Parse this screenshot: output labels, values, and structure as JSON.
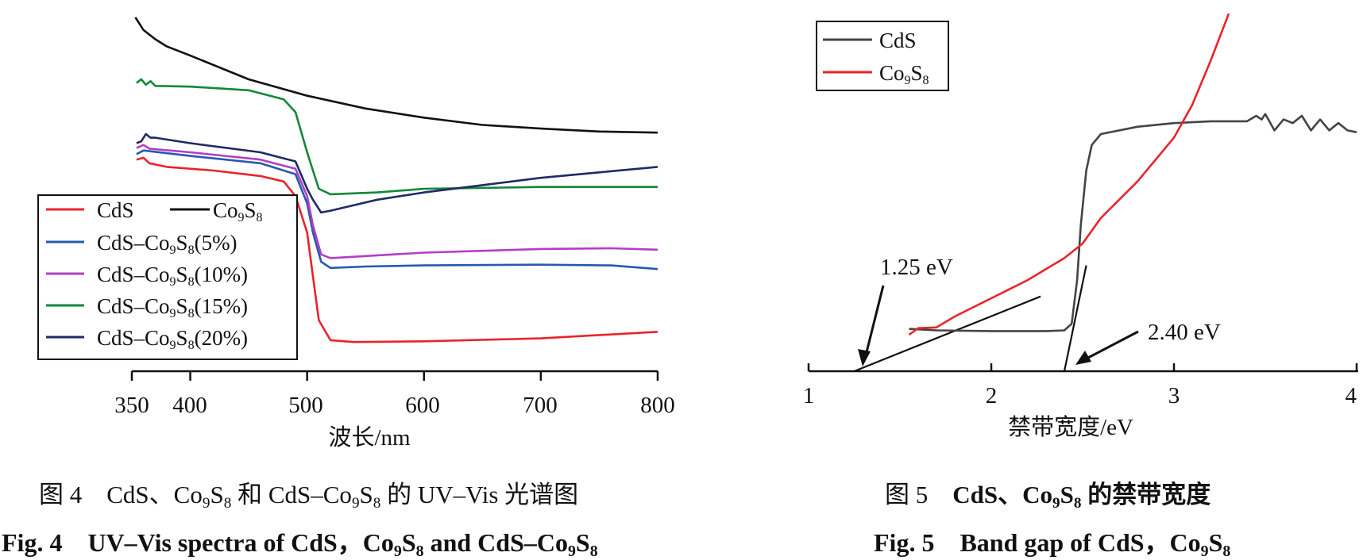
{
  "chart_data": [
    {
      "type": "line",
      "xlabel": "波长/nm",
      "ylabel": "",
      "xlim": [
        350,
        800
      ],
      "x_ticks": [
        350,
        400,
        500,
        600,
        700,
        800
      ],
      "grid": false,
      "legend_position": "bottom-left",
      "series": [
        {
          "name": "CdS",
          "color": "#e8242a",
          "points": [
            [
              354,
              0.58
            ],
            [
              360,
              0.585
            ],
            [
              365,
              0.57
            ],
            [
              380,
              0.56
            ],
            [
              420,
              0.55
            ],
            [
              460,
              0.535
            ],
            [
              480,
              0.52
            ],
            [
              490,
              0.48
            ],
            [
              500,
              0.38
            ],
            [
              505,
              0.26
            ],
            [
              510,
              0.14
            ],
            [
              520,
              0.085
            ],
            [
              540,
              0.08
            ],
            [
              600,
              0.082
            ],
            [
              700,
              0.09
            ],
            [
              800,
              0.108
            ]
          ]
        },
        {
          "name": "Co9S8",
          "color": "#111111",
          "points": [
            [
              353,
              0.97
            ],
            [
              360,
              0.935
            ],
            [
              370,
              0.91
            ],
            [
              380,
              0.89
            ],
            [
              400,
              0.865
            ],
            [
              450,
              0.8
            ],
            [
              500,
              0.755
            ],
            [
              550,
              0.72
            ],
            [
              600,
              0.695
            ],
            [
              650,
              0.675
            ],
            [
              700,
              0.665
            ],
            [
              750,
              0.657
            ],
            [
              800,
              0.654
            ]
          ]
        },
        {
          "name": "CdS–Co9S8(5%)",
          "color": "#2659b0",
          "points": [
            [
              354,
              0.595
            ],
            [
              360,
              0.605
            ],
            [
              365,
              0.603
            ],
            [
              400,
              0.59
            ],
            [
              460,
              0.57
            ],
            [
              490,
              0.54
            ],
            [
              500,
              0.46
            ],
            [
              505,
              0.38
            ],
            [
              512,
              0.3
            ],
            [
              520,
              0.283
            ],
            [
              550,
              0.287
            ],
            [
              600,
              0.29
            ],
            [
              700,
              0.292
            ],
            [
              760,
              0.29
            ],
            [
              800,
              0.28
            ]
          ]
        },
        {
          "name": "CdS–Co9S8(10%)",
          "color": "#b23ec4",
          "points": [
            [
              354,
              0.612
            ],
            [
              360,
              0.62
            ],
            [
              365,
              0.61
            ],
            [
              400,
              0.6
            ],
            [
              460,
              0.58
            ],
            [
              490,
              0.555
            ],
            [
              500,
              0.48
            ],
            [
              505,
              0.4
            ],
            [
              512,
              0.32
            ],
            [
              520,
              0.31
            ],
            [
              600,
              0.325
            ],
            [
              700,
              0.335
            ],
            [
              760,
              0.337
            ],
            [
              800,
              0.333
            ]
          ]
        },
        {
          "name": "CdS–Co9S8(15%)",
          "color": "#13873a",
          "points": [
            [
              354,
              0.79
            ],
            [
              358,
              0.8
            ],
            [
              362,
              0.785
            ],
            [
              366,
              0.795
            ],
            [
              370,
              0.782
            ],
            [
              400,
              0.78
            ],
            [
              450,
              0.77
            ],
            [
              480,
              0.745
            ],
            [
              490,
              0.71
            ],
            [
              500,
              0.6
            ],
            [
              505,
              0.55
            ],
            [
              510,
              0.5
            ],
            [
              520,
              0.485
            ],
            [
              560,
              0.49
            ],
            [
              600,
              0.5
            ],
            [
              700,
              0.505
            ],
            [
              800,
              0.505
            ]
          ]
        },
        {
          "name": "CdS–Co9S8(20%)",
          "color": "#1f2a66",
          "points": [
            [
              354,
              0.625
            ],
            [
              358,
              0.63
            ],
            [
              362,
              0.65
            ],
            [
              366,
              0.64
            ],
            [
              370,
              0.64
            ],
            [
              400,
              0.625
            ],
            [
              460,
              0.6
            ],
            [
              490,
              0.575
            ],
            [
              500,
              0.5
            ],
            [
              505,
              0.47
            ],
            [
              512,
              0.435
            ],
            [
              520,
              0.44
            ],
            [
              560,
              0.47
            ],
            [
              600,
              0.49
            ],
            [
              650,
              0.51
            ],
            [
              700,
              0.53
            ],
            [
              750,
              0.545
            ],
            [
              800,
              0.56
            ]
          ]
        }
      ],
      "legend": [
        "CdS",
        "Co9S8",
        "CdS–Co9S8(5%)",
        "CdS–Co9S8(10%)",
        "CdS–Co9S8(15%)",
        "CdS–Co9S8(20%)"
      ]
    },
    {
      "type": "line",
      "xlabel": "禁带宽度/eV",
      "ylabel": "",
      "xlim": [
        1,
        4
      ],
      "x_ticks": [
        1,
        2,
        3,
        4
      ],
      "grid": false,
      "legend_position": "top-left",
      "series": [
        {
          "name": "CdS",
          "color": "#444444",
          "points": [
            [
              1.55,
              0.116
            ],
            [
              1.7,
              0.112
            ],
            [
              2.0,
              0.11
            ],
            [
              2.3,
              0.11
            ],
            [
              2.4,
              0.112
            ],
            [
              2.44,
              0.13
            ],
            [
              2.47,
              0.25
            ],
            [
              2.49,
              0.4
            ],
            [
              2.52,
              0.55
            ],
            [
              2.55,
              0.62
            ],
            [
              2.6,
              0.65
            ],
            [
              2.8,
              0.67
            ],
            [
              3.0,
              0.68
            ],
            [
              3.2,
              0.685
            ],
            [
              3.4,
              0.685
            ],
            [
              3.45,
              0.7
            ],
            [
              3.48,
              0.69
            ],
            [
              3.5,
              0.705
            ],
            [
              3.55,
              0.66
            ],
            [
              3.6,
              0.69
            ],
            [
              3.65,
              0.68
            ],
            [
              3.7,
              0.7
            ],
            [
              3.75,
              0.66
            ],
            [
              3.8,
              0.69
            ],
            [
              3.85,
              0.66
            ],
            [
              3.9,
              0.68
            ],
            [
              3.95,
              0.66
            ],
            [
              4.0,
              0.655
            ]
          ]
        },
        {
          "name": "Co9S8",
          "color": "#e8242a",
          "points": [
            [
              1.55,
              0.1
            ],
            [
              1.6,
              0.118
            ],
            [
              1.7,
              0.12
            ],
            [
              1.8,
              0.15
            ],
            [
              2.0,
              0.2
            ],
            [
              2.2,
              0.25
            ],
            [
              2.4,
              0.31
            ],
            [
              2.5,
              0.35
            ],
            [
              2.6,
              0.42
            ],
            [
              2.8,
              0.52
            ],
            [
              3.0,
              0.64
            ],
            [
              3.1,
              0.73
            ],
            [
              3.2,
              0.85
            ],
            [
              3.3,
              0.98
            ]
          ]
        }
      ],
      "fit_lines": [
        {
          "from": [
            1.25,
            0.0
          ],
          "to": [
            2.27,
            0.205
          ]
        },
        {
          "from": [
            2.4,
            0.0
          ],
          "to": [
            2.52,
            0.29
          ]
        }
      ],
      "annotations": [
        {
          "text": "1.25 eV",
          "value": 1.25
        },
        {
          "text": "2.40 eV",
          "value": 2.4
        }
      ],
      "legend": [
        "CdS",
        "Co9S8"
      ]
    }
  ],
  "fig4": {
    "x_ticks": [
      "350",
      "400",
      "500",
      "600",
      "700",
      "800"
    ],
    "xlabel": "波长/nm",
    "legend": {
      "cds": "CdS",
      "co9s8_a": "Co",
      "co9s8_sub1": "9",
      "co9s8_b": "S",
      "co9s8_sub2": "8",
      "c5_a": "CdS–Co",
      "c5_sub1": "9",
      "c5_b": "S",
      "c5_sub2": "8",
      "c5_c": "(5%)",
      "c10_a": "CdS–Co",
      "c10_sub1": "9",
      "c10_b": "S",
      "c10_sub2": "8",
      "c10_c": "(10%)",
      "c15_a": "CdS–Co",
      "c15_sub1": "9",
      "c15_b": "S",
      "c15_sub2": "8",
      "c15_c": "(15%)",
      "c20_a": "CdS–Co",
      "c20_sub1": "9",
      "c20_b": "S",
      "c20_sub2": "8",
      "c20_c": "(20%)"
    },
    "caption_cn": {
      "p1": "图 4　CdS、Co",
      "s1": "9",
      "p2": "S",
      "s2": "8",
      "p3": " 和 CdS–Co",
      "s3": "9",
      "p4": "S",
      "s4": "8",
      "p5": " 的 UV–Vis 光谱图"
    },
    "caption_en": {
      "p1": "Fig. 4　UV–Vis spectra of CdS，Co",
      "s1": "9",
      "p2": "S",
      "s2": "8",
      "p3": " and CdS–Co",
      "s3": "9",
      "p4": "S",
      "s4": "8"
    }
  },
  "fig5": {
    "x_ticks": [
      "1",
      "2",
      "3",
      "4"
    ],
    "xlabel": "禁带宽度/eV",
    "legend": {
      "cds": "CdS",
      "co_a": "Co",
      "co_sub1": "9",
      "co_b": "S",
      "co_sub2": "8"
    },
    "annotation_1": "1.25 eV",
    "annotation_2": "2.40 eV",
    "caption_cn": {
      "p1": "图 5　",
      "p2": "CdS、Co",
      "s1": "9",
      "p3": "S",
      "s2": "8",
      "p4": " 的禁带宽度"
    },
    "caption_en": {
      "p1": "Fig. 5　Band gap of CdS，Co",
      "s1": "9",
      "p2": "S",
      "s2": "8"
    }
  }
}
